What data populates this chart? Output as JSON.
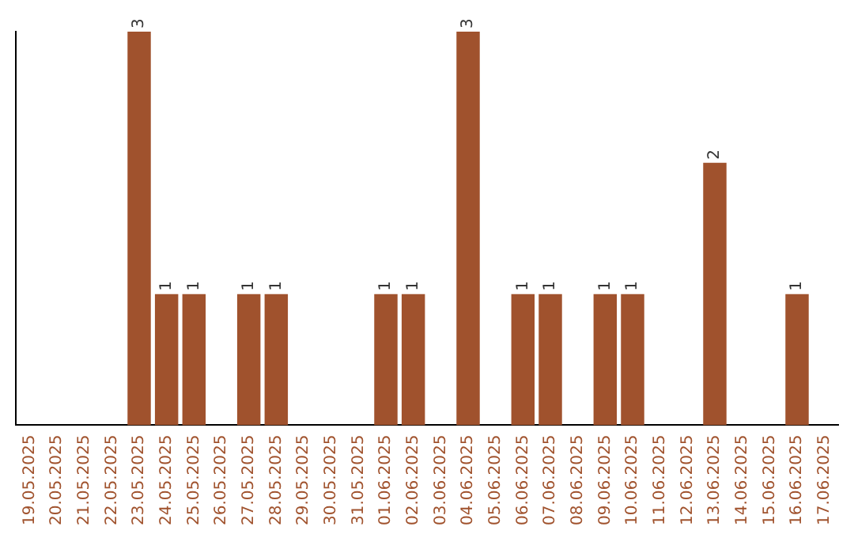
{
  "chart_data": {
    "type": "bar",
    "categories": [
      "19.05.2025",
      "20.05.2025",
      "21.05.2025",
      "22.05.2025",
      "23.05.2025",
      "24.05.2025",
      "25.05.2025",
      "26.05.2025",
      "27.05.2025",
      "28.05.2025",
      "29.05.2025",
      "30.05.2025",
      "31.05.2025",
      "01.06.2025",
      "02.06.2025",
      "03.06.2025",
      "04.06.2025",
      "05.06.2025",
      "06.06.2025",
      "07.06.2025",
      "08.06.2025",
      "09.06.2025",
      "10.06.2025",
      "11.06.2025",
      "12.06.2025",
      "13.06.2025",
      "14.06.2025",
      "15.06.2025",
      "16.06.2025",
      "17.06.2025"
    ],
    "values": [
      0,
      0,
      0,
      0,
      3,
      1,
      1,
      0,
      1,
      1,
      0,
      0,
      0,
      1,
      1,
      0,
      3,
      0,
      1,
      1,
      0,
      1,
      1,
      0,
      0,
      2,
      0,
      0,
      1,
      0
    ],
    "value_labels": [
      null,
      null,
      null,
      null,
      "3",
      "1",
      "1",
      null,
      "1",
      "1",
      null,
      null,
      null,
      "1",
      "1",
      null,
      "3",
      null,
      "1",
      "1",
      null,
      "1",
      "1",
      null,
      null,
      "2",
      null,
      null,
      "1",
      null
    ],
    "color": "#a0522d",
    "relative": false,
    "grid": false,
    "legend": false,
    "tick_labels": "x"
  }
}
